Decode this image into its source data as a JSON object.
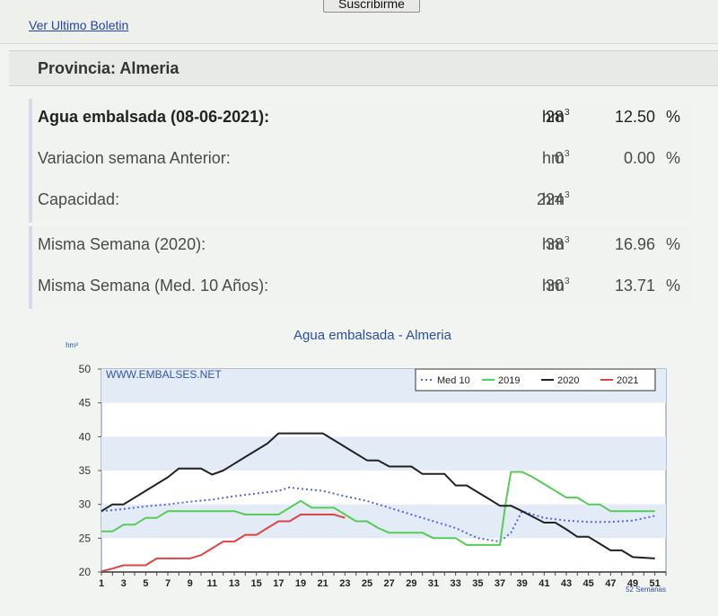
{
  "header": {
    "subscribe_label": "Suscribirme",
    "last_bulletin_label": "Ver Ultimo Boletin"
  },
  "province": {
    "title": "Provincia: Almeria"
  },
  "stats": [
    {
      "label": "Agua embalsada (08-06-2021):",
      "value": "28",
      "unit": "hm",
      "pct": "12.50",
      "pct_sign": "%"
    },
    {
      "label": "Variacion semana Anterior:",
      "value": "0",
      "unit": "hm",
      "pct": "0.00",
      "pct_sign": "%"
    },
    {
      "label": "Capacidad:",
      "value": "224",
      "unit": "hm",
      "pct": "",
      "pct_sign": ""
    },
    {
      "label": "Misma Semana (2020):",
      "value": "38",
      "unit": "hm",
      "pct": "16.96",
      "pct_sign": "%"
    },
    {
      "label": "Misma Semana (Med. 10 Años):",
      "value": "30",
      "unit": "hm",
      "pct": "13.71",
      "pct_sign": "%"
    }
  ],
  "unit_exponent": "3",
  "chart_data": {
    "type": "line",
    "title": "Agua embalsada - Almeria",
    "ylabel": "hm³",
    "watermark": "WWW.EMBALSES.NET",
    "xlabel": "52 Semanas",
    "ylim": [
      20,
      50
    ],
    "xlim": [
      1,
      52
    ],
    "yticks": [
      20,
      25,
      30,
      35,
      40,
      45,
      50
    ],
    "xticks": [
      1,
      3,
      5,
      7,
      9,
      11,
      13,
      15,
      17,
      19,
      21,
      23,
      25,
      27,
      29,
      31,
      33,
      35,
      37,
      39,
      41,
      43,
      45,
      47,
      49,
      51
    ],
    "legend_position": "top-right",
    "grid": "horizontal bands",
    "series": [
      {
        "name": "Med 10",
        "color": "#5566dd",
        "style": "dotted",
        "points": [
          [
            1,
            29
          ],
          [
            3,
            29.3
          ],
          [
            5,
            29.7
          ],
          [
            7,
            30
          ],
          [
            9,
            30.4
          ],
          [
            11,
            30.7
          ],
          [
            13,
            31.2
          ],
          [
            15,
            31.6
          ],
          [
            17,
            32
          ],
          [
            18,
            32.5
          ],
          [
            19,
            32.3
          ],
          [
            21,
            32
          ],
          [
            23,
            31.2
          ],
          [
            25,
            30.5
          ],
          [
            27,
            29.5
          ],
          [
            29,
            28.5
          ],
          [
            31,
            27.5
          ],
          [
            33,
            26.5
          ],
          [
            35,
            25
          ],
          [
            37,
            24.5
          ],
          [
            38,
            25.8
          ],
          [
            39,
            29
          ],
          [
            41,
            28
          ],
          [
            43,
            27.6
          ],
          [
            45,
            27.4
          ],
          [
            47,
            27.4
          ],
          [
            49,
            27.6
          ],
          [
            51,
            28.3
          ]
        ]
      },
      {
        "name": "2019",
        "color": "#55cc55",
        "style": "solid",
        "points": [
          [
            1,
            26
          ],
          [
            2,
            26
          ],
          [
            3,
            27
          ],
          [
            4,
            27
          ],
          [
            5,
            28
          ],
          [
            6,
            28
          ],
          [
            7,
            29
          ],
          [
            9,
            29
          ],
          [
            13,
            29
          ],
          [
            14,
            28.5
          ],
          [
            17,
            28.5
          ],
          [
            19,
            30.5
          ],
          [
            20,
            29.5
          ],
          [
            22,
            29.5
          ],
          [
            24,
            27.5
          ],
          [
            25,
            27.5
          ],
          [
            26,
            26.5
          ],
          [
            27,
            25.8
          ],
          [
            30,
            25.8
          ],
          [
            31,
            25
          ],
          [
            33,
            25
          ],
          [
            34,
            24
          ],
          [
            36,
            24
          ],
          [
            37,
            24
          ],
          [
            37.5,
            30
          ],
          [
            38,
            34.8
          ],
          [
            39,
            34.8
          ],
          [
            40,
            34
          ],
          [
            42,
            32
          ],
          [
            43,
            31
          ],
          [
            44,
            31
          ],
          [
            45,
            30
          ],
          [
            46,
            30
          ],
          [
            47,
            29
          ],
          [
            51,
            29
          ]
        ]
      },
      {
        "name": "2020",
        "color": "#222222",
        "style": "solid",
        "points": [
          [
            1,
            29
          ],
          [
            2,
            30
          ],
          [
            3,
            30
          ],
          [
            5,
            32
          ],
          [
            7,
            34
          ],
          [
            8,
            35.3
          ],
          [
            10,
            35.3
          ],
          [
            11,
            34.4
          ],
          [
            12,
            35
          ],
          [
            14,
            37
          ],
          [
            16,
            39
          ],
          [
            17,
            40.5
          ],
          [
            21,
            40.5
          ],
          [
            23,
            38.5
          ],
          [
            25,
            36.5
          ],
          [
            26,
            36.5
          ],
          [
            27,
            35.6
          ],
          [
            29,
            35.6
          ],
          [
            30,
            34.5
          ],
          [
            32,
            34.5
          ],
          [
            33,
            32.8
          ],
          [
            34,
            32.8
          ],
          [
            35,
            31.8
          ],
          [
            36,
            30.8
          ],
          [
            37,
            29.8
          ],
          [
            38,
            29.8
          ],
          [
            39,
            29
          ],
          [
            41,
            27.3
          ],
          [
            42,
            27.3
          ],
          [
            43,
            26.3
          ],
          [
            44,
            25.2
          ],
          [
            45,
            25.2
          ],
          [
            46,
            24.2
          ],
          [
            47,
            23.2
          ],
          [
            48,
            23.2
          ],
          [
            49,
            22.2
          ],
          [
            51,
            22
          ]
        ]
      },
      {
        "name": "2021",
        "color": "#dd4444",
        "style": "solid",
        "points": [
          [
            1,
            20.1
          ],
          [
            2,
            20.5
          ],
          [
            3,
            21
          ],
          [
            5,
            21
          ],
          [
            6,
            22
          ],
          [
            9,
            22
          ],
          [
            10,
            22.5
          ],
          [
            11,
            23.5
          ],
          [
            12,
            24.5
          ],
          [
            13,
            24.5
          ],
          [
            14,
            25.5
          ],
          [
            15,
            25.5
          ],
          [
            16,
            26.5
          ],
          [
            17,
            27.5
          ],
          [
            18,
            27.5
          ],
          [
            19,
            28.5
          ],
          [
            22,
            28.5
          ],
          [
            23,
            28
          ]
        ]
      }
    ]
  }
}
